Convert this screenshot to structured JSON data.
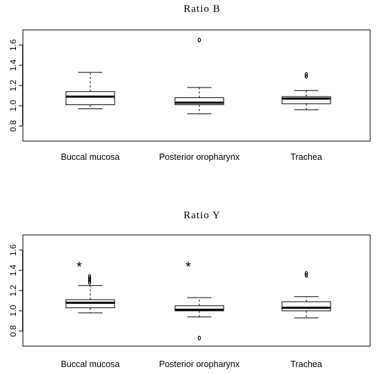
{
  "chart_data": [
    {
      "type": "boxplot",
      "title": "Ratio B",
      "categories": [
        "Buccal mucosa",
        "Posterior oropharynx",
        "Trachea"
      ],
      "ylim": [
        0.65,
        1.75
      ],
      "yticks": [
        0.8,
        1.0,
        1.2,
        1.4,
        1.6
      ],
      "ytick_labels": [
        "0.8",
        "1.0",
        "1.2",
        "1.4",
        "1.6"
      ],
      "boxes": [
        {
          "category": "Buccal mucosa",
          "whisker_low": 0.97,
          "q1": 1.01,
          "median": 1.09,
          "q3": 1.14,
          "whisker_high": 1.33,
          "outliers": [],
          "annotation": ""
        },
        {
          "category": "Posterior oropharynx",
          "whisker_low": 0.92,
          "q1": 1.01,
          "median": 1.03,
          "q3": 1.08,
          "whisker_high": 1.18,
          "outliers": [
            1.65
          ],
          "annotation": ""
        },
        {
          "category": "Trachea",
          "whisker_low": 0.96,
          "q1": 1.02,
          "median": 1.07,
          "q3": 1.09,
          "whisker_high": 1.15,
          "outliers": [
            1.29,
            1.31
          ],
          "annotation": ""
        }
      ]
    },
    {
      "type": "boxplot",
      "title": "Ratio Y",
      "categories": [
        "Buccal mucosa",
        "Posterior oropharynx",
        "Trachea"
      ],
      "ylim": [
        0.65,
        1.75
      ],
      "yticks": [
        0.8,
        1.0,
        1.2,
        1.4,
        1.6
      ],
      "ytick_labels": [
        "0.8",
        "1.0",
        "1.2",
        "1.4",
        "1.6"
      ],
      "boxes": [
        {
          "category": "Buccal mucosa",
          "whisker_low": 0.98,
          "q1": 1.03,
          "median": 1.08,
          "q3": 1.11,
          "whisker_high": 1.25,
          "outliers": [
            1.28,
            1.3,
            1.32,
            1.34
          ],
          "annotation": "*"
        },
        {
          "category": "Posterior oropharynx",
          "whisker_low": 0.94,
          "q1": 1.0,
          "median": 1.01,
          "q3": 1.05,
          "whisker_high": 1.13,
          "outliers": [
            0.73
          ],
          "annotation": "*"
        },
        {
          "category": "Trachea",
          "whisker_low": 0.93,
          "q1": 1.0,
          "median": 1.03,
          "q3": 1.09,
          "whisker_high": 1.14,
          "outliers": [
            1.35,
            1.37
          ],
          "annotation": ""
        }
      ]
    }
  ]
}
